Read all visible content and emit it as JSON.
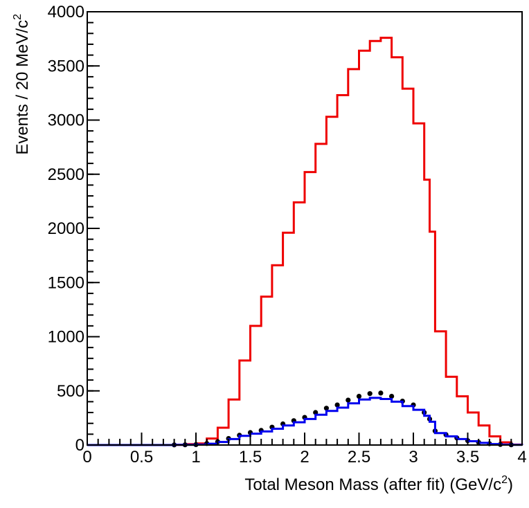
{
  "chart_data": {
    "type": "line",
    "title": "",
    "xlabel": "Total Meson Mass  (after fit) (GeV/c",
    "xlabel_sup": "2",
    "xlabel_close": ")",
    "ylabel": "Events / 20 MeV/c",
    "ylabel_sup": "2",
    "xlim": [
      0,
      4
    ],
    "ylim": [
      0,
      4000
    ],
    "x_ticks": [
      0,
      0.5,
      1,
      1.5,
      2,
      2.5,
      3,
      3.5,
      4
    ],
    "x_tick_labels": [
      "0",
      "0.5",
      "1",
      "1.5",
      "2",
      "2.5",
      "3",
      "3.5",
      "4"
    ],
    "y_ticks": [
      0,
      500,
      1000,
      1500,
      2000,
      2500,
      3000,
      3500,
      4000
    ],
    "y_tick_labels": [
      "0",
      "500",
      "1000",
      "1500",
      "2000",
      "2500",
      "3000",
      "3500",
      "4000"
    ],
    "grid": false,
    "legend": "none",
    "series": [
      {
        "style": "step",
        "color": "#ee0000",
        "x": [
          0.0,
          0.8,
          0.9,
          1.0,
          1.1,
          1.2,
          1.3,
          1.4,
          1.5,
          1.6,
          1.7,
          1.8,
          1.9,
          2.0,
          2.1,
          2.2,
          2.3,
          2.4,
          2.5,
          2.6,
          2.7,
          2.8,
          2.9,
          3.0,
          3.1,
          3.15,
          3.2,
          3.3,
          3.4,
          3.5,
          3.6,
          3.7,
          3.8,
          3.9,
          4.0
        ],
        "y": [
          0,
          2,
          8,
          15,
          60,
          160,
          420,
          780,
          1100,
          1370,
          1660,
          1960,
          2240,
          2520,
          2780,
          3030,
          3230,
          3470,
          3640,
          3730,
          3760,
          3580,
          3290,
          2970,
          2450,
          1970,
          1050,
          630,
          450,
          300,
          180,
          80,
          25,
          4,
          0
        ]
      },
      {
        "style": "points",
        "color": "#000000",
        "x": [
          0.8,
          0.9,
          1.0,
          1.1,
          1.2,
          1.3,
          1.4,
          1.5,
          1.6,
          1.7,
          1.8,
          1.9,
          2.0,
          2.1,
          2.2,
          2.3,
          2.4,
          2.5,
          2.6,
          2.7,
          2.8,
          2.9,
          3.0,
          3.1,
          3.15,
          3.2,
          3.3,
          3.4,
          3.5,
          3.6,
          3.7,
          3.8,
          3.9
        ],
        "y": [
          1,
          2,
          4,
          14,
          30,
          60,
          90,
          115,
          135,
          165,
          195,
          225,
          255,
          300,
          340,
          370,
          415,
          450,
          475,
          480,
          450,
          405,
          370,
          300,
          240,
          130,
          95,
          65,
          40,
          25,
          12,
          5,
          2
        ]
      },
      {
        "style": "step",
        "color": "#0000ee",
        "x": [
          0.0,
          0.8,
          0.9,
          1.0,
          1.1,
          1.2,
          1.3,
          1.4,
          1.5,
          1.6,
          1.7,
          1.8,
          1.9,
          2.0,
          2.1,
          2.2,
          2.3,
          2.4,
          2.5,
          2.6,
          2.7,
          2.8,
          2.9,
          3.0,
          3.1,
          3.15,
          3.2,
          3.3,
          3.4,
          3.5,
          3.6,
          3.7,
          3.8,
          3.9,
          4.0
        ],
        "y": [
          0,
          1,
          2,
          4,
          12,
          28,
          55,
          85,
          105,
          125,
          150,
          180,
          210,
          240,
          280,
          315,
          345,
          385,
          420,
          435,
          425,
          400,
          360,
          325,
          270,
          215,
          110,
          80,
          55,
          35,
          20,
          9,
          4,
          1,
          0
        ]
      }
    ]
  }
}
